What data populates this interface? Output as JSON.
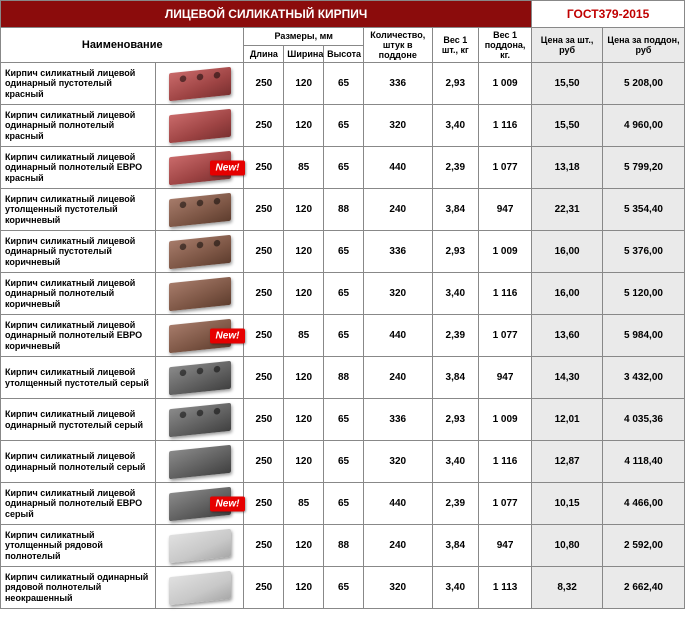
{
  "header": {
    "title": "ЛИЦЕВОЙ СИЛИКАТНЫЙ КИРПИЧ",
    "gost": "ГОСТ379-2015",
    "cols": {
      "name": "Наименование",
      "size_group": "Размеры, мм",
      "length": "Длина",
      "width": "Ширина",
      "height": "Высота",
      "qty": "Количество, штук в поддоне",
      "weight_pc": "Вес 1 шт., кг",
      "weight_pallet": "Вес 1 поддона, кг.",
      "price_pc": "Цена за шт., руб",
      "price_pallet": "Цена за поддон, руб"
    }
  },
  "brick_colors": {
    "red": "linear-gradient(160deg,#c96a6a,#9e4444 60%,#7a3030)",
    "brown": "linear-gradient(160deg,#a67b6a,#7d5645 60%,#5e3d2e)",
    "gray": "linear-gradient(160deg,#8a8a8a,#5e5e5e 60%,#404040)",
    "lightgray": "linear-gradient(160deg,#e0e0e0,#c8c8c8 60%,#a8a8a8)"
  },
  "new_label": "New!",
  "rows": [
    {
      "name": "Кирпич силикатный лицевой одинарный пустотелый красный",
      "color": "red",
      "holes": true,
      "new": false,
      "l": "250",
      "w": "120",
      "h": "65",
      "qty": "336",
      "wpc": "2,93",
      "wpal": "1 009",
      "ppc": "15,50",
      "ppal": "5 208,00"
    },
    {
      "name": "Кирпич силикатный лицевой одинарный полнотелый красный",
      "color": "red",
      "holes": false,
      "new": false,
      "l": "250",
      "w": "120",
      "h": "65",
      "qty": "320",
      "wpc": "3,40",
      "wpal": "1 116",
      "ppc": "15,50",
      "ppal": "4 960,00"
    },
    {
      "name": "Кирпич силикатный лицевой одинарный полнотелый ЕВРО красный",
      "color": "red",
      "holes": false,
      "new": true,
      "l": "250",
      "w": "85",
      "h": "65",
      "qty": "440",
      "wpc": "2,39",
      "wpal": "1 077",
      "ppc": "13,18",
      "ppal": "5 799,20"
    },
    {
      "name": "Кирпич силикатный лицевой утолщенный пустотелый коричневый",
      "color": "brown",
      "holes": true,
      "new": false,
      "l": "250",
      "w": "120",
      "h": "88",
      "qty": "240",
      "wpc": "3,84",
      "wpal": "947",
      "ppc": "22,31",
      "ppal": "5 354,40"
    },
    {
      "name": "Кирпич силикатный лицевой одинарный пустотелый коричневый",
      "color": "brown",
      "holes": true,
      "new": false,
      "l": "250",
      "w": "120",
      "h": "65",
      "qty": "336",
      "wpc": "2,93",
      "wpal": "1 009",
      "ppc": "16,00",
      "ppal": "5 376,00"
    },
    {
      "name": "Кирпич силикатный лицевой одинарный полнотелый коричневый",
      "color": "brown",
      "holes": false,
      "new": false,
      "l": "250",
      "w": "120",
      "h": "65",
      "qty": "320",
      "wpc": "3,40",
      "wpal": "1 116",
      "ppc": "16,00",
      "ppal": "5 120,00"
    },
    {
      "name": "Кирпич силикатный лицевой одинарный полнотелый ЕВРО коричневый",
      "color": "brown",
      "holes": false,
      "new": true,
      "l": "250",
      "w": "85",
      "h": "65",
      "qty": "440",
      "wpc": "2,39",
      "wpal": "1 077",
      "ppc": "13,60",
      "ppal": "5 984,00"
    },
    {
      "name": "Кирпич силикатный лицевой утолщенный пустотелый серый",
      "color": "gray",
      "holes": true,
      "new": false,
      "l": "250",
      "w": "120",
      "h": "88",
      "qty": "240",
      "wpc": "3,84",
      "wpal": "947",
      "ppc": "14,30",
      "ppal": "3 432,00"
    },
    {
      "name": "Кирпич силикатный лицевой одинарный пустотелый серый",
      "color": "gray",
      "holes": true,
      "new": false,
      "l": "250",
      "w": "120",
      "h": "65",
      "qty": "336",
      "wpc": "2,93",
      "wpal": "1 009",
      "ppc": "12,01",
      "ppal": "4 035,36"
    },
    {
      "name": "Кирпич силикатный лицевой одинарный полнотелый серый",
      "color": "gray",
      "holes": false,
      "new": false,
      "l": "250",
      "w": "120",
      "h": "65",
      "qty": "320",
      "wpc": "3,40",
      "wpal": "1 116",
      "ppc": "12,87",
      "ppal": "4 118,40"
    },
    {
      "name": "Кирпич силикатный лицевой одинарный полнотелый ЕВРО серый",
      "color": "gray",
      "holes": false,
      "new": true,
      "l": "250",
      "w": "85",
      "h": "65",
      "qty": "440",
      "wpc": "2,39",
      "wpal": "1 077",
      "ppc": "10,15",
      "ppal": "4 466,00"
    },
    {
      "name": "Кирпич силикатный утолщенный рядовой полнотелый",
      "color": "lightgray",
      "holes": false,
      "new": false,
      "l": "250",
      "w": "120",
      "h": "88",
      "qty": "240",
      "wpc": "3,84",
      "wpal": "947",
      "ppc": "10,80",
      "ppal": "2 592,00"
    },
    {
      "name": "Кирпич силикатный одинарный рядовой полнотелый неокрашенный",
      "color": "lightgray",
      "holes": false,
      "new": false,
      "l": "250",
      "w": "120",
      "h": "65",
      "qty": "320",
      "wpc": "3,40",
      "wpal": "1 113",
      "ppc": "8,32",
      "ppal": "2 662,40"
    }
  ],
  "col_widths": {
    "name": 140,
    "img": 80,
    "l": 36,
    "w": 36,
    "h": 36,
    "qty": 62,
    "wpc": 42,
    "wpal": 48,
    "ppc": 64,
    "ppal": 74
  }
}
